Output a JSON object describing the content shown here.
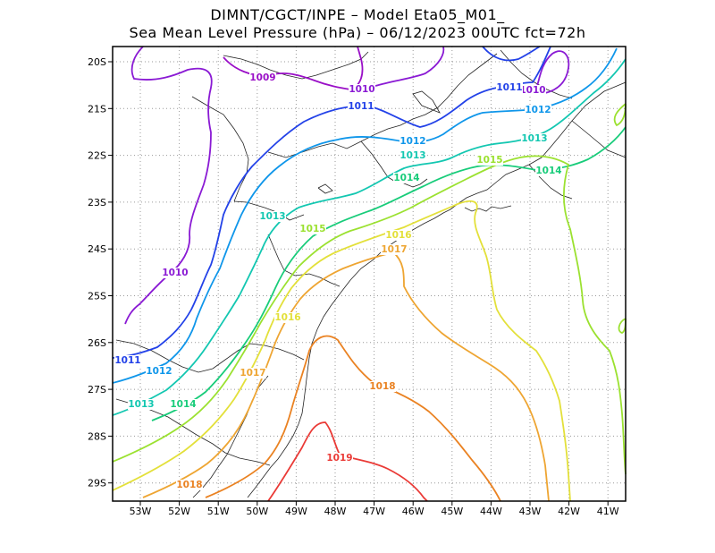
{
  "title": {
    "line1": "DIMNT/CGCT/INPE –  Model Eta05_M01_",
    "line2": "Sea Mean Level Pressure (hPa) – 06/12/2023 00UTC fct=72h"
  },
  "axes": {
    "x_ticks": [
      "53W",
      "52W",
      "51W",
      "50W",
      "49W",
      "48W",
      "47W",
      "46W",
      "45W",
      "44W",
      "43W",
      "42W",
      "41W"
    ],
    "y_ticks": [
      "20S",
      "21S",
      "22S",
      "23S",
      "24S",
      "25S",
      "26S",
      "27S",
      "28S",
      "29S"
    ]
  },
  "contours": [
    {
      "level": "1009",
      "color": "#9a0fc7"
    },
    {
      "level": "1010",
      "color": "#8a1ad4"
    },
    {
      "level": "1011",
      "color": "#2342e8"
    },
    {
      "level": "1012",
      "color": "#0f96ea"
    },
    {
      "level": "1013",
      "color": "#13c7b1"
    },
    {
      "level": "1014",
      "color": "#18cc7a"
    },
    {
      "level": "1015",
      "color": "#9be130"
    },
    {
      "level": "1016",
      "color": "#e3e03a"
    },
    {
      "level": "1017",
      "color": "#eea532"
    },
    {
      "level": "1018",
      "color": "#ea8222"
    },
    {
      "level": "1019",
      "color": "#ea3a36"
    }
  ]
}
